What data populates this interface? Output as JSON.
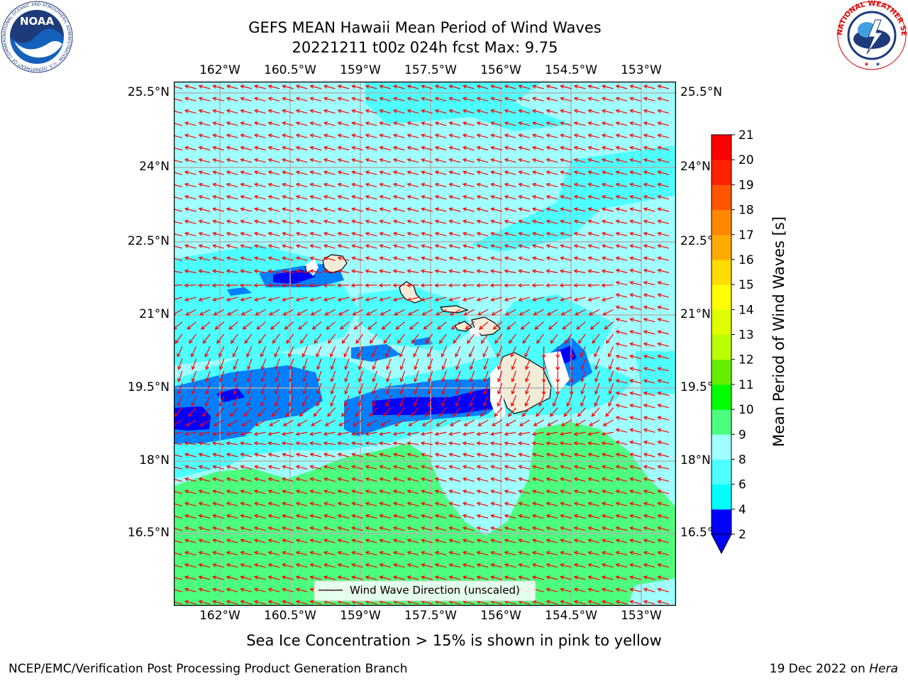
{
  "header": {
    "title_line1": "GEFS MEAN Hawaii Mean Period of Wind Waves",
    "title_line2": "20221211 t00z 024h fcst   Max: 9.75"
  },
  "logos": {
    "left": "NOAA",
    "left_ring": "NATIONAL OCEANIC AND ATMOSPHERIC ADMINISTRATION · U.S. DEPARTMENT OF COMMERCE",
    "right_ring": "NATIONAL WEATHER SERVICE"
  },
  "map": {
    "lon_labels": [
      "162°W",
      "160.5°W",
      "159°W",
      "157.5°W",
      "156°W",
      "154.5°W",
      "153°W"
    ],
    "lat_labels": [
      "25.5°N",
      "24°N",
      "22.5°N",
      "21°N",
      "19.5°N",
      "18°N",
      "16.5°N"
    ],
    "legend_label": "Wind Wave Direction (unscaled)",
    "colors": {
      "land": "#f0ecd8",
      "arrow": "#ff0000",
      "grid": "#b0b0b0"
    }
  },
  "colorbar": {
    "label": "Mean Period of Wind Waves [s]",
    "ticks": [
      "2",
      "4",
      "6",
      "8",
      "9",
      "10",
      "11",
      "12",
      "13",
      "14",
      "15",
      "16",
      "17",
      "18",
      "19",
      "20",
      "21"
    ],
    "colors": [
      "#0000ff",
      "#007fff",
      "#00ffff",
      "#4dffff",
      "#a0ffff",
      "#4dff7f",
      "#00ff00",
      "#66ee00",
      "#bbff00",
      "#ddff00",
      "#ffff00",
      "#ffdd00",
      "#ffaa00",
      "#ff8800",
      "#ff5500",
      "#ff2200",
      "#ff0000"
    ]
  },
  "sea_ice_note": "Sea Ice Concentration > 15% is shown in pink to yellow",
  "footer": {
    "left": "NCEP/EMC/Verification Post Processing Product Generation Branch",
    "right_prefix": "19 Dec 2022 on ",
    "right_host": "Hera"
  }
}
